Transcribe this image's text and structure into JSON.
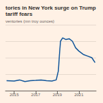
{
  "chart_data": {
    "type": "line",
    "title": "tories in New York surge on Trump tariff fears",
    "subtitle": "ventories (mn troy ounces)",
    "x": [
      2014.3,
      2015,
      2015.5,
      2016,
      2016.5,
      2017,
      2017.5,
      2018,
      2018.5,
      2018.9,
      2019.1,
      2019.2,
      2019.3,
      2019.5,
      2019.8,
      2020.1,
      2020.4,
      2020.7,
      2021,
      2021.4,
      2021.8,
      2022.2,
      2022.5
    ],
    "values": [
      6,
      5.8,
      6.5,
      5.5,
      6,
      6.2,
      6.5,
      6,
      5.8,
      6.5,
      12,
      22,
      30,
      32,
      31,
      31.5,
      30,
      26,
      24,
      22,
      21,
      20,
      17
    ],
    "color": "#0f5499",
    "xlim": [
      2014.2,
      2022.6
    ],
    "xticks": [
      2015,
      2017,
      2019,
      2021
    ],
    "ylim": [
      0,
      40
    ],
    "yticks": [
      0,
      10,
      20,
      30,
      40
    ],
    "grid": true,
    "tick_labels": "x"
  }
}
